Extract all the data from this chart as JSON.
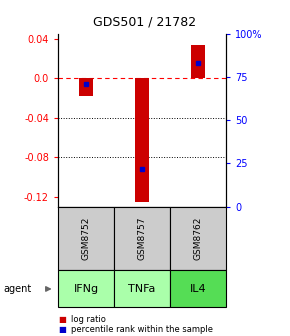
{
  "title": "GDS501 / 21782",
  "samples": [
    "GSM8752",
    "GSM8757",
    "GSM8762"
  ],
  "agents": [
    "IFNg",
    "TNFa",
    "IL4"
  ],
  "log_ratios": [
    -0.018,
    -0.125,
    0.033
  ],
  "percentile_ranks": [
    71,
    22,
    83
  ],
  "ylim_left": [
    -0.13,
    0.045
  ],
  "ylim_right": [
    0,
    100
  ],
  "left_ticks": [
    0.04,
    0.0,
    -0.04,
    -0.08,
    -0.12
  ],
  "right_ticks": [
    100,
    75,
    50,
    25,
    0
  ],
  "grid_lines": [
    -0.04,
    -0.08
  ],
  "bar_color": "#cc0000",
  "percentile_color": "#0000cc",
  "sample_box_color": "#cccccc",
  "agent_colors": [
    "#aaffaa",
    "#aaffaa",
    "#55dd55"
  ],
  "bar_width": 0.25,
  "title_fontsize": 9,
  "tick_fontsize": 7,
  "sample_fontsize": 6.5,
  "agent_fontsize": 8
}
